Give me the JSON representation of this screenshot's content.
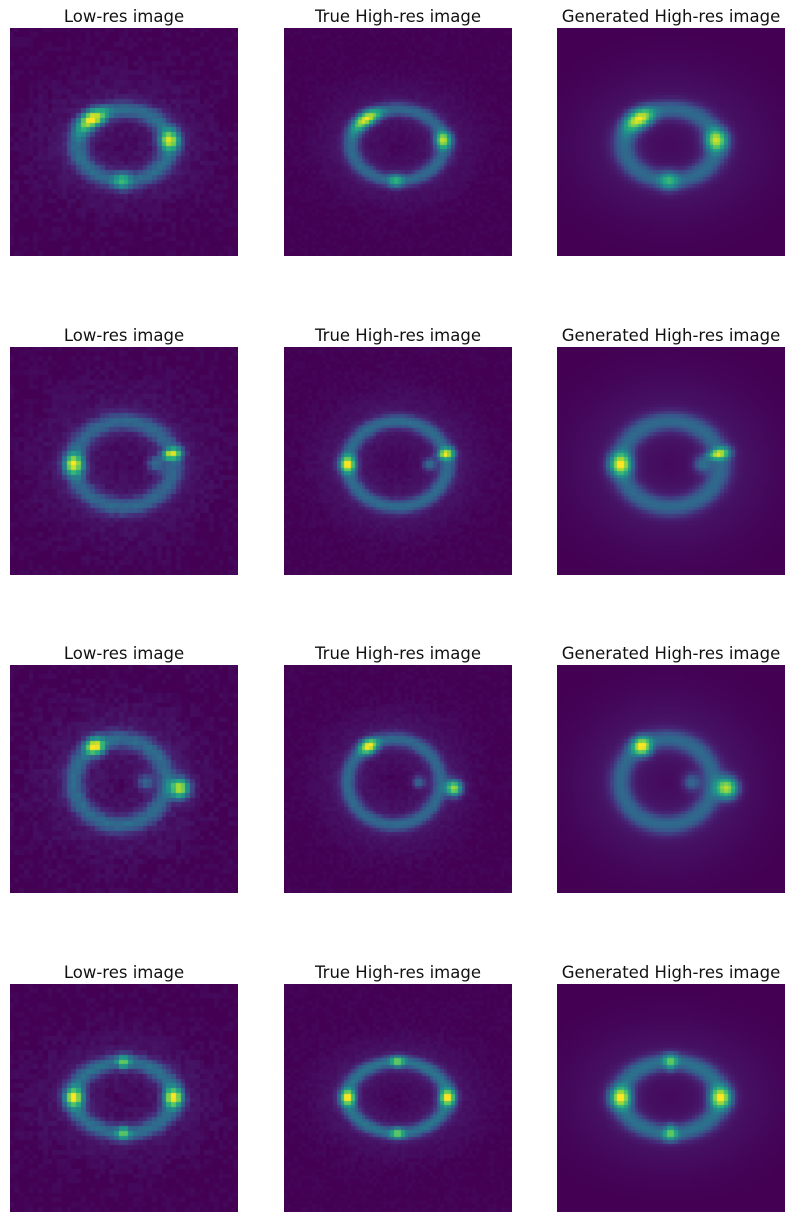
{
  "figure": {
    "background": "#ffffff",
    "colormap": "viridis",
    "colormap_stops": [
      "#440154",
      "#3b528b",
      "#21908d",
      "#5dc962",
      "#fde725"
    ],
    "rows": [
      {
        "row": 1,
        "panels": [
          {
            "title": "Low-res image",
            "kind": "low-res"
          },
          {
            "title": "True High-res image",
            "kind": "true-high-res"
          },
          {
            "title": "Generated High-res image",
            "kind": "generated-high-res"
          }
        ]
      },
      {
        "row": 2,
        "panels": [
          {
            "title": "Low-res image",
            "kind": "low-res"
          },
          {
            "title": "True High-res image",
            "kind": "true-high-res"
          },
          {
            "title": "Generated High-res image",
            "kind": "generated-high-res"
          }
        ]
      },
      {
        "row": 3,
        "panels": [
          {
            "title": "Low-res image",
            "kind": "low-res"
          },
          {
            "title": "True High-res image",
            "kind": "true-high-res"
          },
          {
            "title": "Generated High-res image",
            "kind": "generated-high-res"
          }
        ]
      },
      {
        "row": 4,
        "panels": [
          {
            "title": "Low-res image",
            "kind": "low-res"
          },
          {
            "title": "True High-res image",
            "kind": "true-high-res"
          },
          {
            "title": "Generated High-res image",
            "kind": "generated-high-res"
          }
        ]
      }
    ]
  }
}
